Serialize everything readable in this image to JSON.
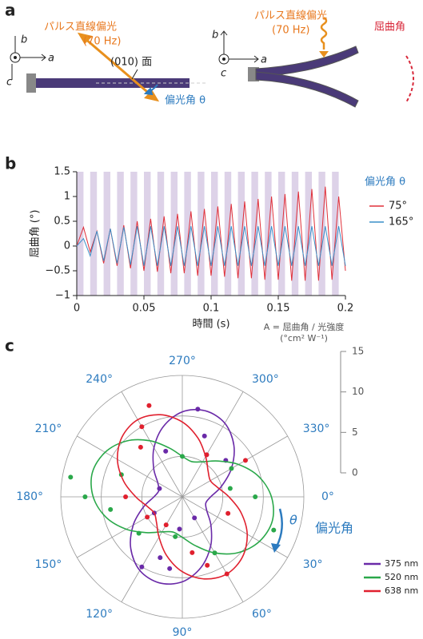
{
  "panel_a": {
    "label": "a",
    "left": {
      "light_label": "パルス直線偏光",
      "freq": "(70 Hz)",
      "plane": "(010) 面",
      "angle": "偏光角 θ",
      "axis_b": "b",
      "axis_a": "a",
      "axis_c": "c"
    },
    "right": {
      "light_label": "パルス直線偏光",
      "freq": "(70 Hz)",
      "bend": "屈曲角",
      "axis_b": "b",
      "axis_a": "a",
      "axis_c": "c"
    }
  },
  "chart_data": [
    {
      "type": "line",
      "panel_label": "b",
      "xlabel": "時間 (s)",
      "ylabel": "屈曲角 (°)",
      "legend_title": "偏光角 θ",
      "x": [
        0,
        0.005,
        0.01,
        0.015,
        0.02,
        0.025,
        0.03,
        0.035,
        0.04,
        0.045,
        0.05,
        0.055,
        0.06,
        0.065,
        0.07,
        0.075,
        0.08,
        0.085,
        0.09,
        0.095,
        0.1,
        0.105,
        0.11,
        0.115,
        0.12,
        0.125,
        0.13,
        0.135,
        0.14,
        0.145,
        0.15,
        0.155,
        0.16,
        0.165,
        0.17,
        0.175,
        0.18,
        0.185,
        0.19,
        0.195,
        0.2
      ],
      "series": [
        {
          "name": "75°",
          "color": "#e0303a",
          "values": [
            0,
            0.38,
            -0.12,
            0.3,
            -0.35,
            0.35,
            -0.4,
            0.42,
            -0.45,
            0.5,
            -0.5,
            0.55,
            -0.52,
            0.6,
            -0.55,
            0.65,
            -0.55,
            0.7,
            -0.6,
            0.75,
            -0.6,
            0.8,
            -0.62,
            0.85,
            -0.65,
            0.9,
            -0.65,
            0.95,
            -0.68,
            1.0,
            -0.68,
            1.05,
            -0.7,
            1.1,
            -0.7,
            1.15,
            -0.7,
            1.2,
            -0.68,
            1.0,
            -0.5
          ]
        },
        {
          "name": "165°",
          "color": "#3a8fc8",
          "values": [
            0,
            0.15,
            -0.2,
            0.3,
            -0.3,
            0.35,
            -0.35,
            0.38,
            -0.38,
            0.4,
            -0.4,
            0.4,
            -0.4,
            0.4,
            -0.4,
            0.4,
            -0.4,
            0.4,
            -0.4,
            0.4,
            -0.4,
            0.4,
            -0.4,
            0.4,
            -0.4,
            0.4,
            -0.4,
            0.4,
            -0.4,
            0.4,
            -0.4,
            0.4,
            -0.4,
            0.4,
            -0.4,
            0.4,
            -0.4,
            0.4,
            -0.4,
            0.4,
            -0.4
          ]
        }
      ],
      "xlim": [
        0,
        0.2
      ],
      "ylim": [
        -1,
        1.5
      ],
      "xticks": [
        0,
        0.05,
        0.1,
        0.15,
        0.2
      ],
      "yticks": [
        {
          "value": -1,
          "label": "−1"
        },
        {
          "value": -0.5,
          "label": "−0.5"
        },
        0,
        0.5,
        1,
        1.5
      ],
      "pulse_period": 0.01,
      "pulse_width": 0.005,
      "pulse_color": "#ddd2e8"
    },
    {
      "type": "polar",
      "panel_label": "c",
      "rlabel": [
        "A = 屈曲角 / 光強度",
        "(°cm² W⁻¹)"
      ],
      "theta_label": "θ",
      "theta_name": "偏光角",
      "angles": [
        0,
        15,
        30,
        45,
        60,
        75,
        90,
        105,
        120,
        135,
        150,
        165,
        180,
        195,
        210,
        225,
        240,
        255,
        270,
        285,
        300,
        315,
        330,
        345
      ],
      "series": [
        {
          "name": "375 nm",
          "color": "#6a2aa8",
          "values": [
            3.5,
            3,
            3.5,
            5,
            7,
            9,
            10.5,
            11,
            10.5,
            9,
            7,
            5,
            3.5,
            3,
            3.5,
            5,
            7,
            9,
            10.5,
            11,
            10.5,
            9,
            7,
            5
          ],
          "points_theta": [
            280,
            290,
            300,
            100,
            110,
            95,
            250,
            200,
            150,
            60,
            320,
            120
          ],
          "points_r": [
            11,
            8,
            6,
            9,
            8,
            4,
            6,
            3,
            4,
            3,
            7,
            10
          ]
        },
        {
          "name": "520 nm",
          "color": "#2aa84a",
          "values": [
            11,
            11.5,
            11,
            9.75,
            8,
            6.25,
            5,
            4.5,
            5,
            6.25,
            8,
            9.75,
            11,
            11.5,
            11,
            9.75,
            8,
            6.25,
            5,
            4.5,
            5,
            6.25,
            8,
            9.75
          ],
          "points_theta": [
            0,
            20,
            180,
            190,
            170,
            200,
            330,
            350,
            100,
            270,
            60,
            140
          ],
          "points_r": [
            9,
            12,
            12,
            14,
            9,
            8,
            7,
            6,
            5,
            5,
            8,
            7
          ]
        },
        {
          "name": "638 nm",
          "color": "#e0202e",
          "values": [
            5.75,
            7.5,
            9.25,
            10.5,
            11,
            10.5,
            9.25,
            7.5,
            5.75,
            4.5,
            4,
            4.5,
            5.75,
            7.5,
            9.25,
            10.5,
            11,
            10.5,
            9.25,
            7.5,
            5.75,
            4.5,
            4,
            4.5
          ],
          "points_theta": [
            240,
            250,
            230,
            60,
            70,
            80,
            300,
            330,
            180,
            150,
            20,
            120
          ],
          "points_r": [
            10,
            12,
            8,
            11,
            9,
            7,
            6,
            9,
            7,
            5,
            6,
            4
          ]
        }
      ],
      "rlim": [
        0,
        15
      ],
      "rticks": [
        0,
        5,
        10,
        15
      ],
      "thetaticks": [
        {
          "value": 0,
          "label": "0°"
        },
        {
          "value": 30,
          "label": "30°"
        },
        {
          "value": 60,
          "label": "60°"
        },
        {
          "value": 90,
          "label": "90°"
        },
        {
          "value": 120,
          "label": "120°"
        },
        {
          "value": 150,
          "label": "150°"
        },
        {
          "value": 180,
          "label": "180°"
        },
        {
          "value": 210,
          "label": "210°"
        },
        {
          "value": 240,
          "label": "240°"
        },
        {
          "value": 270,
          "label": "270°"
        },
        {
          "value": 300,
          "label": "300°"
        },
        {
          "value": 330,
          "label": "330°"
        }
      ]
    }
  ]
}
